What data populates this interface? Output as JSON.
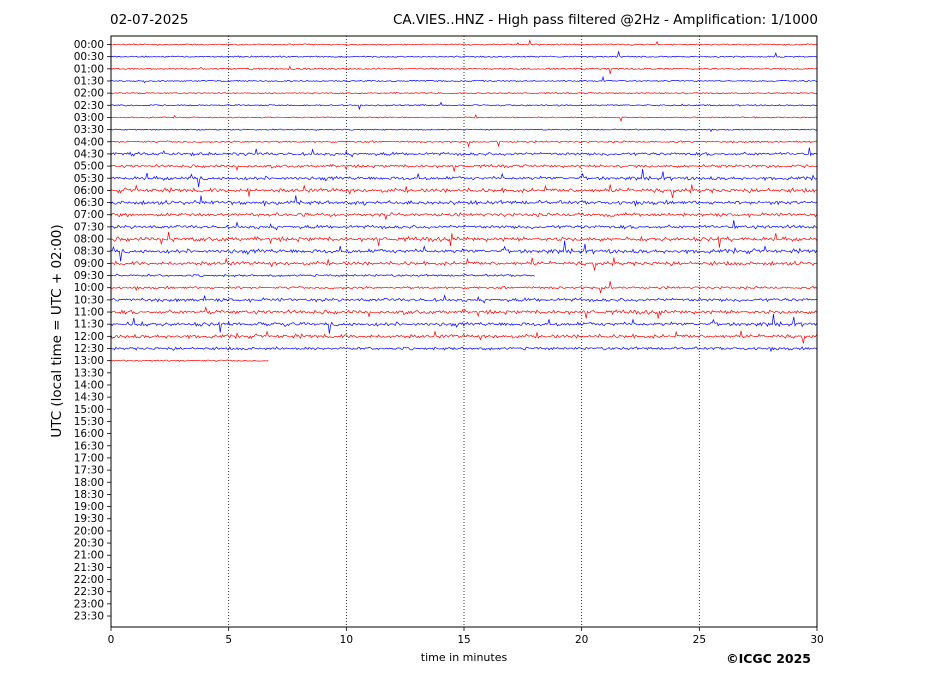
{
  "header": {
    "date": "02-07-2025",
    "title": "CA.VIES..HNZ - High pass filtered @2Hz - Amplification: 1/1000"
  },
  "footer": {
    "copyright": "©ICGC 2025"
  },
  "chart_data": {
    "type": "line",
    "title": "CA.VIES..HNZ - High pass filtered @2Hz - Amplification: 1/1000",
    "xlabel": "time in minutes",
    "ylabel": "UTC (local time = UTC + 02:00)",
    "xlim": [
      0,
      30
    ],
    "x_ticks": [
      0,
      5,
      10,
      15,
      20,
      25,
      30
    ],
    "y_ticks": [
      "00:00",
      "00:30",
      "01:00",
      "01:30",
      "02:00",
      "02:30",
      "03:00",
      "03:30",
      "04:00",
      "04:30",
      "05:00",
      "05:30",
      "06:00",
      "06:30",
      "07:00",
      "07:30",
      "08:00",
      "08:30",
      "09:00",
      "09:30",
      "10:00",
      "10:30",
      "11:00",
      "11:30",
      "12:00",
      "12:30",
      "13:00",
      "13:30",
      "14:00",
      "14:30",
      "15:00",
      "15:30",
      "16:00",
      "16:30",
      "17:00",
      "17:30",
      "18:00",
      "18:30",
      "19:00",
      "19:30",
      "20:00",
      "20:30",
      "21:00",
      "21:30",
      "22:00",
      "22:30",
      "23:00",
      "23:30"
    ],
    "grid": "vertical dotted at x ticks",
    "colors": {
      "even_rows": "#ff0000",
      "odd_rows": "#0000ff"
    },
    "series": [
      {
        "row": "00:00",
        "end": 30,
        "activity": 0.15
      },
      {
        "row": "00:30",
        "end": 30,
        "activity": 0.15
      },
      {
        "row": "01:00",
        "end": 30,
        "activity": 0.2
      },
      {
        "row": "01:30",
        "end": 30,
        "activity": 0.15
      },
      {
        "row": "02:00",
        "end": 30,
        "activity": 0.15
      },
      {
        "row": "02:30",
        "end": 30,
        "activity": 0.2
      },
      {
        "row": "03:00",
        "end": 30,
        "activity": 0.1
      },
      {
        "row": "03:30",
        "end": 30,
        "activity": 0.1
      },
      {
        "row": "04:00",
        "end": 30,
        "activity": 0.3
      },
      {
        "row": "04:30",
        "end": 30,
        "activity": 0.7
      },
      {
        "row": "05:00",
        "end": 30,
        "activity": 0.6
      },
      {
        "row": "05:30",
        "end": 30,
        "activity": 0.8
      },
      {
        "row": "06:00",
        "end": 30,
        "activity": 1.0
      },
      {
        "row": "06:30",
        "end": 30,
        "activity": 0.9
      },
      {
        "row": "07:00",
        "end": 30,
        "activity": 0.8
      },
      {
        "row": "07:30",
        "end": 30,
        "activity": 0.8
      },
      {
        "row": "08:00",
        "end": 30,
        "activity": 1.0
      },
      {
        "row": "08:30",
        "end": 30,
        "activity": 1.0
      },
      {
        "row": "09:00",
        "end": 30,
        "activity": 0.9
      },
      {
        "row": "09:30",
        "end": 18,
        "activity": 0.4
      },
      {
        "row": "10:00",
        "end": 30,
        "activity": 0.5
      },
      {
        "row": "10:30",
        "end": 30,
        "activity": 0.8
      },
      {
        "row": "11:00",
        "end": 30,
        "activity": 0.9
      },
      {
        "row": "11:30",
        "end": 30,
        "activity": 0.9
      },
      {
        "row": "12:00",
        "end": 30,
        "activity": 0.9
      },
      {
        "row": "12:30",
        "end": 30,
        "activity": 0.6
      },
      {
        "row": "13:00",
        "end": 6.7,
        "activity": 0.2
      }
    ]
  }
}
